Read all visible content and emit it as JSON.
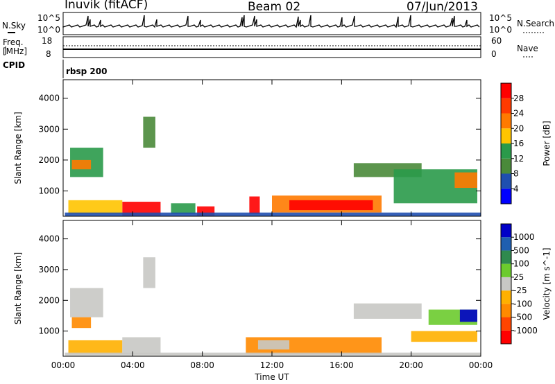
{
  "header": {
    "station": "Inuvik (fitACF)",
    "beam": "Beam 02",
    "date": "07/Jun/2013"
  },
  "top_panel": {
    "left_label": "N.Sky",
    "left_tick_high": "10^5",
    "left_tick_low": "10^0",
    "right_label": "N.Search",
    "right_tick_high": "10^5",
    "right_tick_low": "10^0"
  },
  "freq_panel": {
    "left_label_line1": "Freq.",
    "left_label_line2": "[MHz]",
    "left_tick_high": "18",
    "left_tick_low": "8",
    "right_label": "Nave",
    "right_tick_high": "60",
    "right_tick_low": "0"
  },
  "cpid_panel": {
    "label": "CPID",
    "program": "rbsp 200"
  },
  "colors": {
    "power_scale": [
      "#0000ff",
      "#1f4fb0",
      "#4a8a3a",
      "#2a9a4a",
      "#ffc400",
      "#ff7a00",
      "#ff3a00",
      "#ff0000"
    ],
    "velocity_scale": [
      "#ff0000",
      "#ff4500",
      "#ff8a00",
      "#ffb000",
      "#c8c8c4",
      "#6ccb2e",
      "#2f8a4e",
      "#1f5fb0",
      "#0000c8"
    ]
  },
  "chart_data": [
    {
      "type": "heatmap",
      "title": "",
      "xlabel": "",
      "ylabel": "Slant Range [km]",
      "xlim": [
        0,
        24
      ],
      "ylim": [
        180,
        4600
      ],
      "yticks": [
        "1000",
        "2000",
        "3000",
        "4000"
      ],
      "colorbar": {
        "label": "Power [dB]",
        "ticks": [
          "4",
          "8",
          "12",
          "16",
          "20",
          "24",
          "28"
        ],
        "range": [
          0,
          32
        ]
      },
      "regions": [
        {
          "t0": 3.4,
          "t1": 5.6,
          "r0": 200,
          "r1": 650,
          "value": 31
        },
        {
          "t0": 7.7,
          "t1": 8.7,
          "r0": 200,
          "r1": 500,
          "value": 30
        },
        {
          "t0": 10.7,
          "t1": 11.3,
          "r0": 250,
          "r1": 820,
          "value": 29
        },
        {
          "t0": 12.0,
          "t1": 18.3,
          "r0": 300,
          "r1": 850,
          "value": 22
        },
        {
          "t0": 13.0,
          "t1": 17.8,
          "r0": 380,
          "r1": 700,
          "value": 28
        },
        {
          "t0": 0.3,
          "t1": 3.4,
          "r0": 250,
          "r1": 700,
          "value": 19
        },
        {
          "t0": 0.4,
          "t1": 2.3,
          "r0": 1450,
          "r1": 2400,
          "value": 15
        },
        {
          "t0": 0.5,
          "t1": 1.6,
          "r0": 1700,
          "r1": 2000,
          "value": 21
        },
        {
          "t0": 6.2,
          "t1": 7.6,
          "r0": 250,
          "r1": 600,
          "value": 14
        },
        {
          "t0": 16.7,
          "t1": 20.6,
          "r0": 1450,
          "r1": 1900,
          "value": 8
        },
        {
          "t0": 19.0,
          "t1": 23.8,
          "r0": 600,
          "r1": 1700,
          "value": 13
        },
        {
          "t0": 22.5,
          "t1": 23.8,
          "r0": 1100,
          "r1": 1600,
          "value": 20
        },
        {
          "t0": 4.6,
          "t1": 5.3,
          "r0": 2400,
          "r1": 3400,
          "value": 9
        },
        {
          "t0": 0.1,
          "t1": 24.0,
          "r0": 180,
          "r1": 300,
          "value": 6
        }
      ]
    },
    {
      "type": "heatmap",
      "title": "",
      "xlabel": "Time UT",
      "ylabel": "Slant Range [km]",
      "xlim": [
        0,
        24
      ],
      "ylim": [
        180,
        4600
      ],
      "xticks": [
        "00:00",
        "04:00",
        "08:00",
        "12:00",
        "16:00",
        "20:00",
        "00:00"
      ],
      "yticks": [
        "1000",
        "2000",
        "3000",
        "4000"
      ],
      "colorbar": {
        "label": "Velocity [m s^-1]",
        "ticks": [
          "1000",
          "500",
          "100",
          "25",
          "-25",
          "-100",
          "-500",
          "-1000"
        ],
        "range": [
          -1000,
          1000
        ]
      },
      "regions": [
        {
          "t0": 0.4,
          "t1": 2.3,
          "r0": 1450,
          "r1": 2400,
          "value": 0
        },
        {
          "t0": 0.5,
          "t1": 1.6,
          "r0": 1100,
          "r1": 1450,
          "value": -400
        },
        {
          "t0": 0.3,
          "t1": 3.4,
          "r0": 250,
          "r1": 700,
          "value": -250
        },
        {
          "t0": 3.4,
          "t1": 5.6,
          "r0": 250,
          "r1": 800,
          "value": 10
        },
        {
          "t0": 10.5,
          "t1": 18.3,
          "r0": 250,
          "r1": 800,
          "value": -450
        },
        {
          "t0": 11.2,
          "t1": 13.0,
          "r0": 400,
          "r1": 700,
          "value": 80
        },
        {
          "t0": 16.7,
          "t1": 20.6,
          "r0": 1400,
          "r1": 1900,
          "value": 5
        },
        {
          "t0": 21.0,
          "t1": 23.8,
          "r0": 1200,
          "r1": 1700,
          "value": 300
        },
        {
          "t0": 22.8,
          "t1": 23.8,
          "r0": 1300,
          "r1": 1700,
          "value": 900
        },
        {
          "t0": 20.0,
          "t1": 23.8,
          "r0": 650,
          "r1": 1000,
          "value": -150
        },
        {
          "t0": 4.6,
          "t1": 5.3,
          "r0": 2400,
          "r1": 3400,
          "value": 0
        },
        {
          "t0": 0.1,
          "t1": 24.0,
          "r0": 180,
          "r1": 300,
          "value": -30
        }
      ]
    }
  ]
}
